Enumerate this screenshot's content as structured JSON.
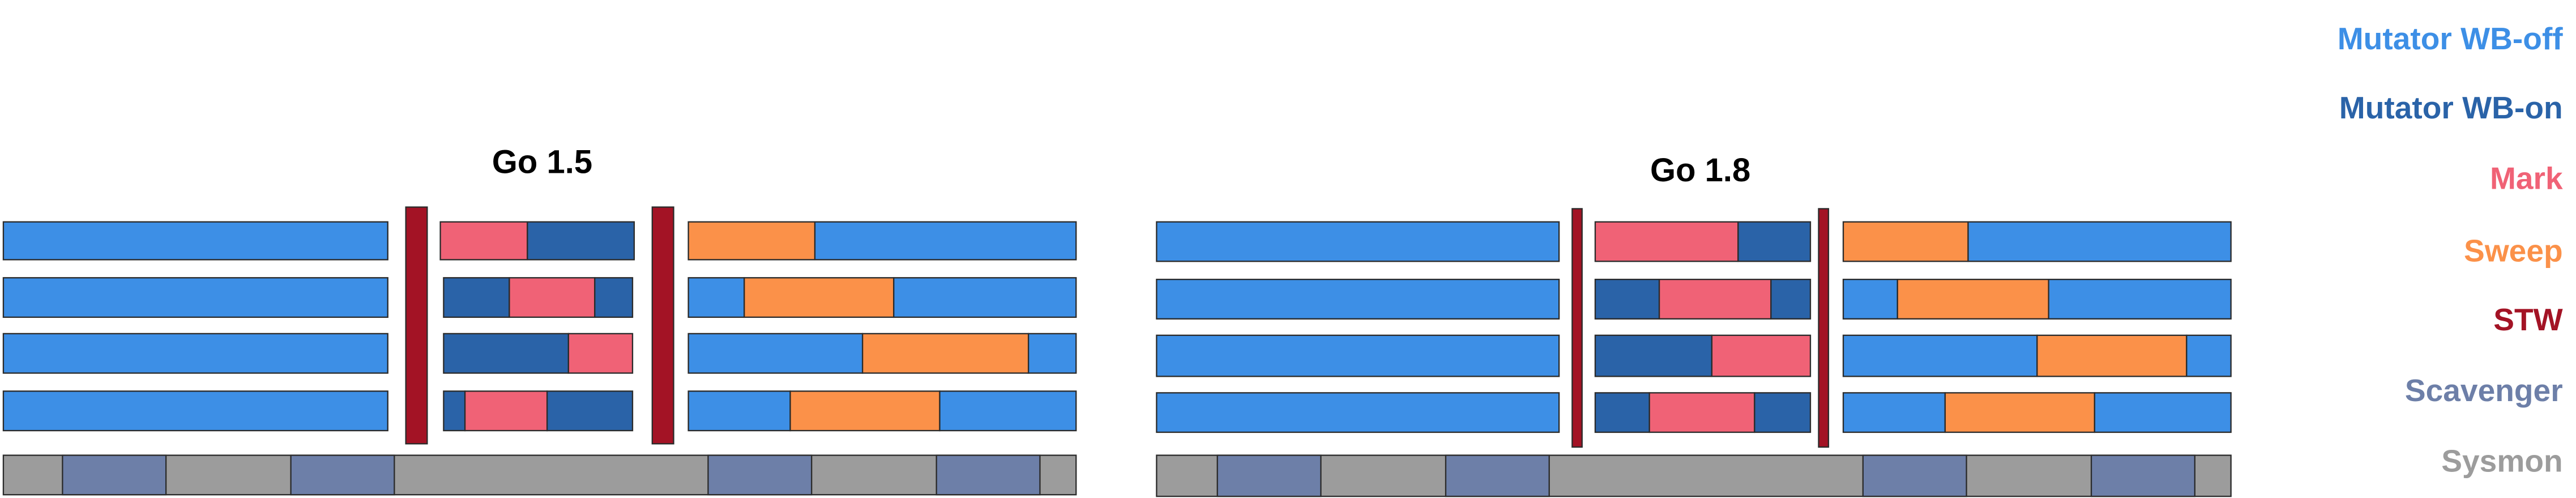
{
  "panels": [
    {
      "title": "Go 1.5"
    },
    {
      "title": "Go 1.8"
    }
  ],
  "legend": [
    {
      "label": "Mutator WB-off",
      "color": "#3d8fe6"
    },
    {
      "label": "Mutator WB-on",
      "color": "#2a63a8"
    },
    {
      "label": "Mark",
      "color": "#f06276"
    },
    {
      "label": "Sweep",
      "color": "#fb9149"
    },
    {
      "label": "STW",
      "color": "#a31325"
    },
    {
      "label": "Scavenger",
      "color": "#6d7fa8"
    },
    {
      "label": "Sysmon",
      "color": "#9c9c9c"
    }
  ]
}
